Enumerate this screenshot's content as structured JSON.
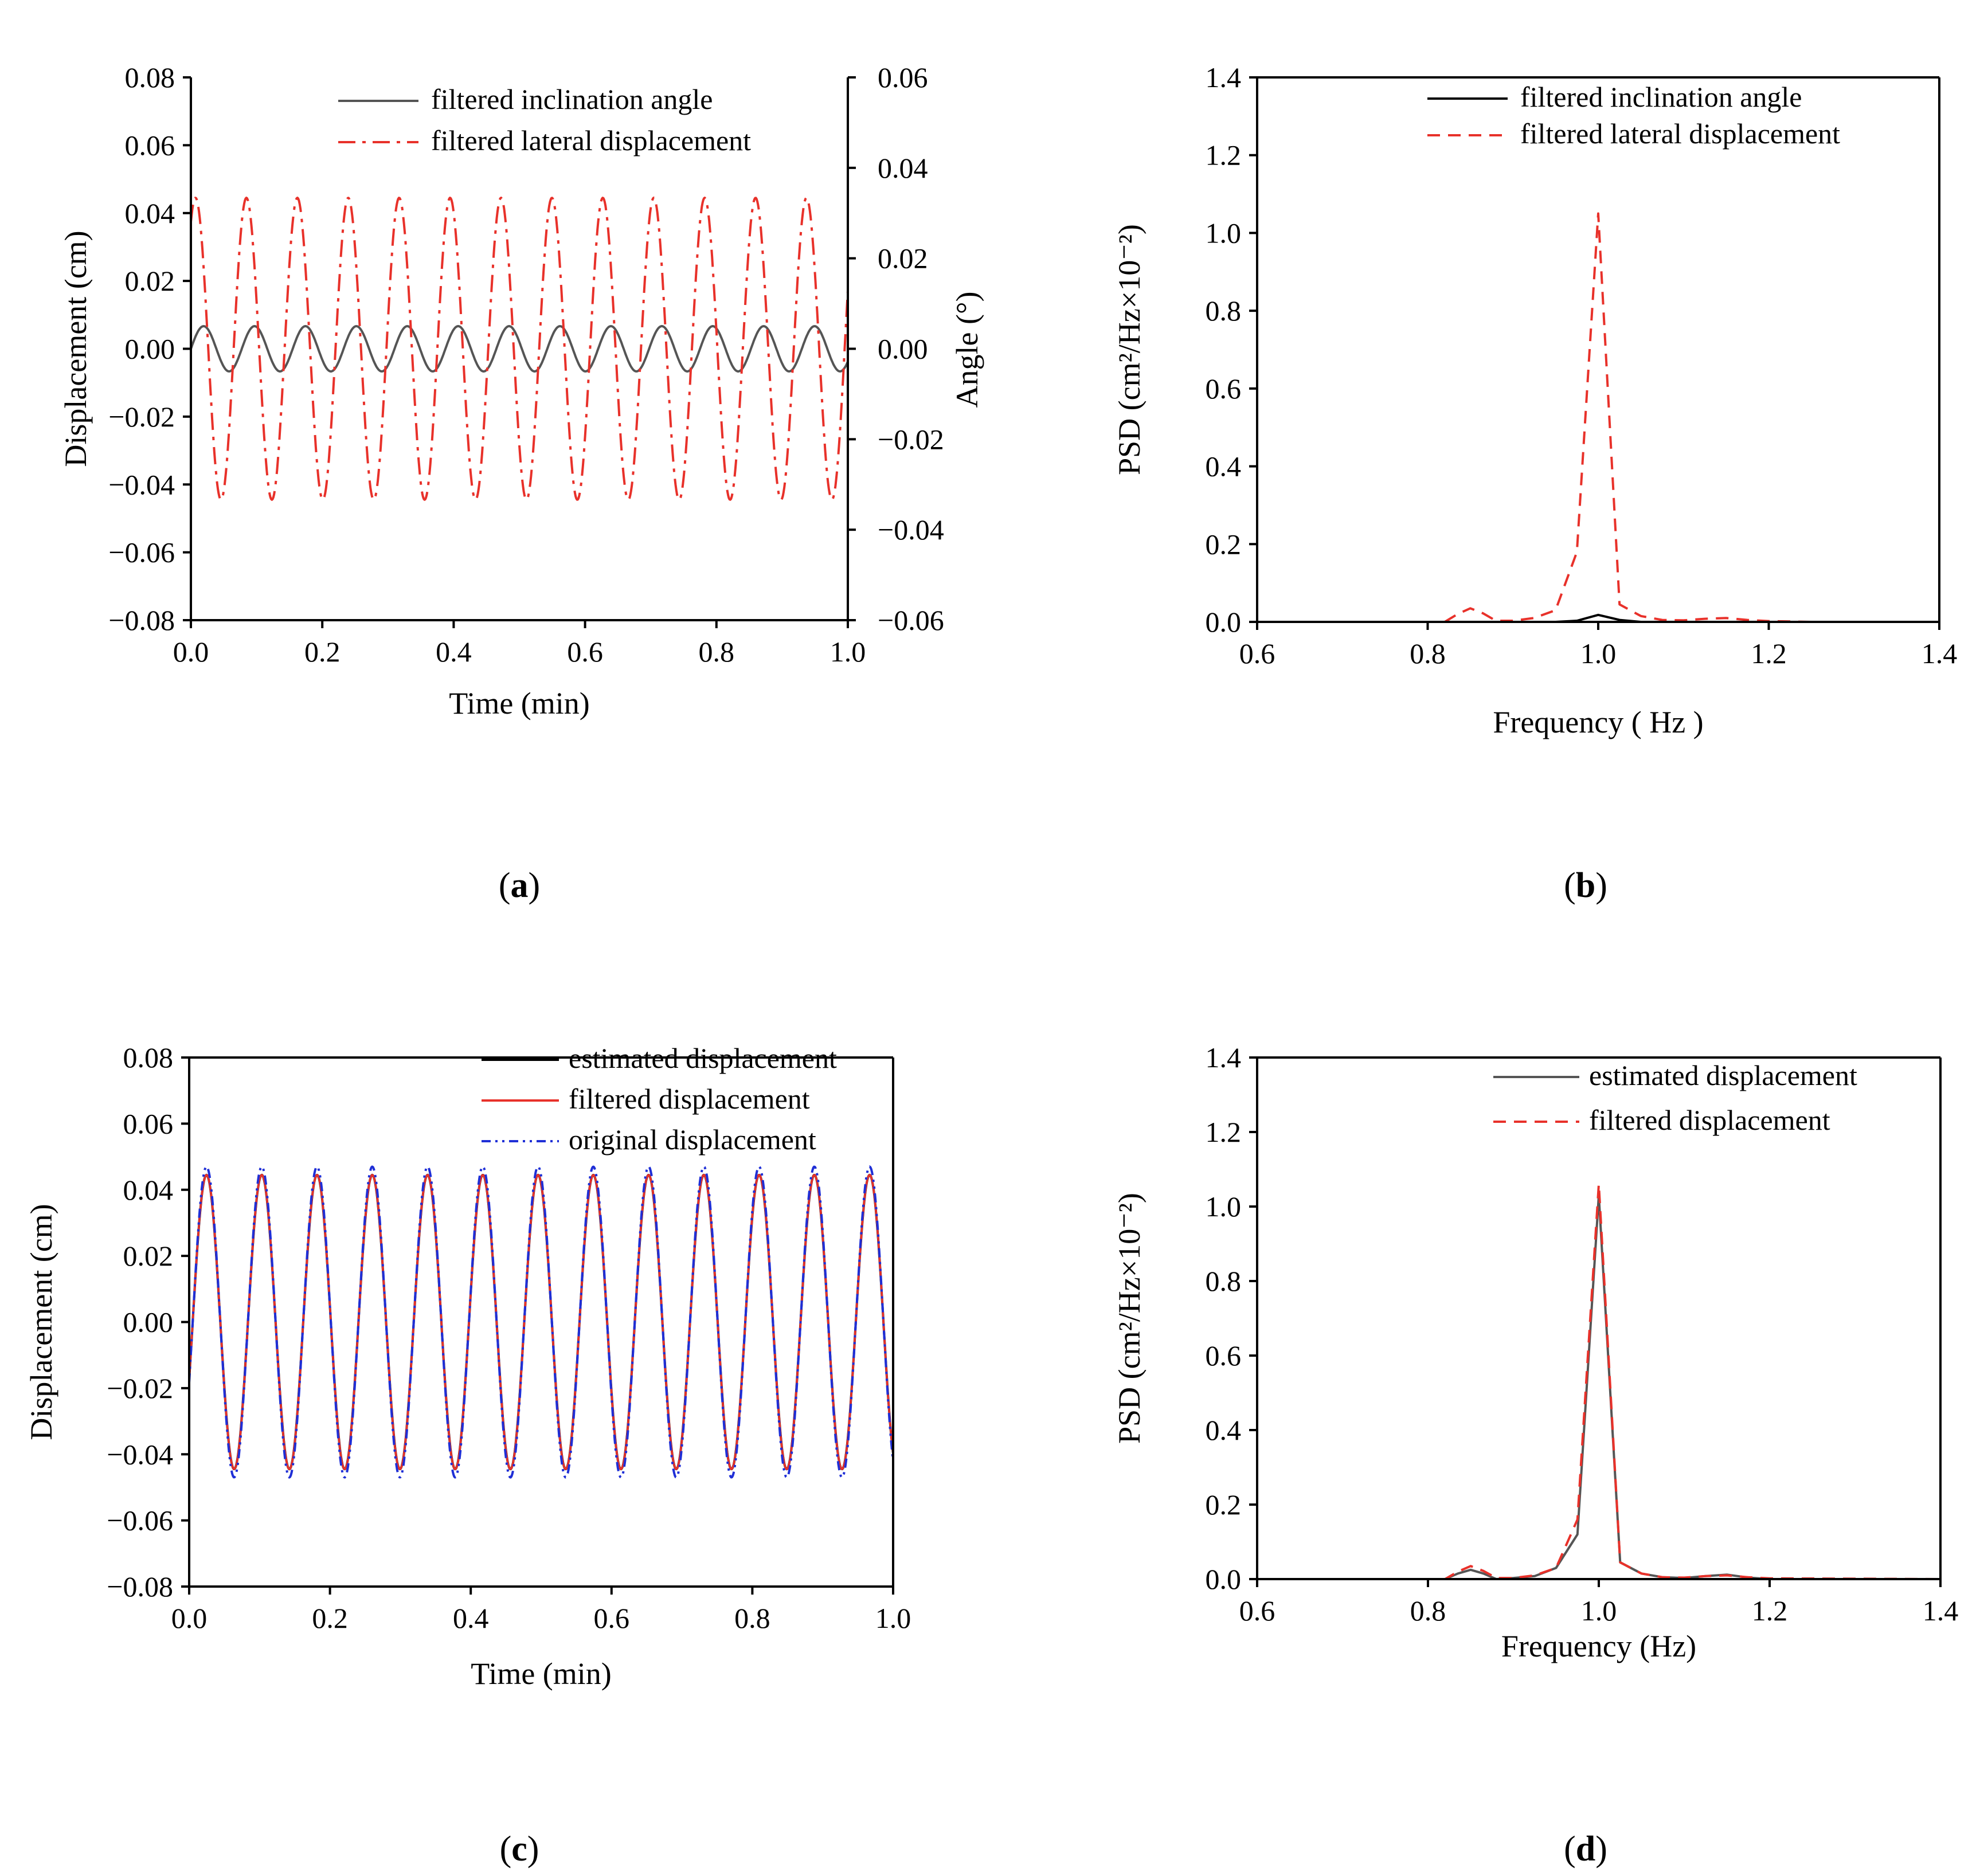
{
  "figure": {
    "captions": [
      {
        "letter": "a",
        "open": "(",
        "close": ")"
      },
      {
        "letter": "b",
        "open": "(",
        "close": ")"
      },
      {
        "letter": "c",
        "open": "(",
        "close": ")"
      },
      {
        "letter": "d",
        "open": "(",
        "close": ")"
      }
    ]
  },
  "colors": {
    "black": "#000000",
    "gray": "#555555",
    "red": "#e8312a",
    "blue": "#1f2fd6"
  },
  "chart_data": [
    {
      "id": "a",
      "type": "line",
      "title": "",
      "xlabel": "Time (min)",
      "ylabel": "Displacement (cm)",
      "y2label": "Angle (°)",
      "xlim": [
        0.0,
        1.0
      ],
      "ylim": [
        -0.08,
        0.08
      ],
      "y2lim": [
        -0.06,
        0.06
      ],
      "xticks": [
        "0.0",
        "0.2",
        "0.4",
        "0.6",
        "0.8",
        "1.0"
      ],
      "yticks": [
        "0.08",
        "0.06",
        "0.04",
        "0.02",
        "0.00",
        "−0.02",
        "−0.04",
        "−0.06",
        "−0.08"
      ],
      "y2ticks": [
        "0.06",
        "0.04",
        "0.02",
        "0.00",
        "−0.02",
        "−0.04",
        "−0.06"
      ],
      "legend": "top-right",
      "series": [
        {
          "name": "filtered inclination angle",
          "axis": "y2",
          "kind": "sine",
          "amplitude": 0.005,
          "period": 0.0775,
          "phase": 0.0,
          "color": "#555555",
          "dash": "solid"
        },
        {
          "name": "filtered lateral displacement",
          "axis": "y",
          "kind": "sine",
          "amplitude": 0.0445,
          "period": 0.0775,
          "phase": 1.0,
          "color": "#e8312a",
          "dash": "dashdot"
        }
      ]
    },
    {
      "id": "b",
      "type": "line",
      "title": "",
      "xlabel": "Frequency ( Hz )",
      "ylabel": "PSD (cm²/Hz×10⁻²)",
      "xlim": [
        0.6,
        1.4
      ],
      "ylim": [
        0.0,
        1.4
      ],
      "xticks": [
        "0.6",
        "0.8",
        "1.0",
        "1.2",
        "1.4"
      ],
      "yticks": [
        "1.4",
        "1.2",
        "1.0",
        "0.8",
        "0.6",
        "0.4",
        "0.2",
        "0.0"
      ],
      "legend": "top-right",
      "series": [
        {
          "name": "filtered inclination angle",
          "color": "#000000",
          "dash": "solid",
          "x": [
            0.6,
            0.95,
            0.975,
            1.0,
            1.025,
            1.05,
            1.25
          ],
          "y": [
            0.0,
            0.0,
            0.003,
            0.018,
            0.005,
            0.0,
            0.0
          ]
        },
        {
          "name": "filtered lateral displacement",
          "color": "#e8312a",
          "dash": "dashed",
          "x": [
            0.82,
            0.835,
            0.85,
            0.865,
            0.88,
            0.9,
            0.925,
            0.95,
            0.975,
            1.0,
            1.025,
            1.05,
            1.075,
            1.1,
            1.125,
            1.15,
            1.175,
            1.2,
            1.25
          ],
          "y": [
            0.0,
            0.02,
            0.035,
            0.022,
            0.003,
            0.003,
            0.01,
            0.03,
            0.18,
            1.05,
            0.045,
            0.015,
            0.005,
            0.004,
            0.008,
            0.01,
            0.005,
            0.002,
            0.0
          ]
        }
      ]
    },
    {
      "id": "c",
      "type": "line",
      "title": "",
      "xlabel": "Time (min)",
      "ylabel": "Displacement (cm)",
      "xlim": [
        0.0,
        1.0
      ],
      "ylim": [
        -0.08,
        0.08
      ],
      "xticks": [
        "0.0",
        "0.2",
        "0.4",
        "0.6",
        "0.8",
        "1.0"
      ],
      "yticks": [
        "0.08",
        "0.06",
        "0.04",
        "0.02",
        "0.00",
        "−0.02",
        "−0.04",
        "−0.06",
        "−0.08"
      ],
      "legend": "top-right",
      "series": [
        {
          "name": "estimated displacement",
          "kind": "sine",
          "amplitude": 0.0445,
          "period": 0.0785,
          "phase": -0.4,
          "color": "#000000",
          "dash": "solid"
        },
        {
          "name": "filtered displacement",
          "kind": "sine",
          "amplitude": 0.0445,
          "period": 0.0785,
          "phase": -0.4,
          "color": "#e8312a",
          "dash": "solid"
        },
        {
          "name": "original displacement",
          "kind": "sine",
          "amplitude": 0.047,
          "period": 0.0785,
          "phase": -0.4,
          "color": "#1f2fd6",
          "dash": "dashdotdot"
        }
      ]
    },
    {
      "id": "d",
      "type": "line",
      "title": "",
      "xlabel": "Frequency (Hz)",
      "ylabel": "PSD (cm²/Hz×10⁻²)",
      "xlim": [
        0.6,
        1.4
      ],
      "ylim": [
        0.0,
        1.4
      ],
      "xticks": [
        "0.6",
        "0.8",
        "1.0",
        "1.2",
        "1.4"
      ],
      "yticks": [
        "1.4",
        "1.2",
        "1.0",
        "0.8",
        "0.6",
        "0.4",
        "0.2",
        "0.0"
      ],
      "legend": "top-right",
      "series": [
        {
          "name": "estimated displacement",
          "color": "#555555",
          "dash": "solid",
          "x": [
            0.6,
            0.82,
            0.835,
            0.85,
            0.865,
            0.88,
            0.9,
            0.925,
            0.95,
            0.975,
            1.0,
            1.025,
            1.05,
            1.075,
            1.1,
            1.125,
            1.15,
            1.175,
            1.2,
            1.4
          ],
          "y": [
            0.0,
            0.0,
            0.015,
            0.025,
            0.015,
            0.0,
            0.003,
            0.008,
            0.03,
            0.12,
            1.03,
            0.045,
            0.015,
            0.005,
            0.003,
            0.008,
            0.012,
            0.004,
            0.0,
            0.0
          ]
        },
        {
          "name": "filtered displacement",
          "color": "#e8312a",
          "dash": "dashed",
          "x": [
            0.6,
            0.82,
            0.835,
            0.85,
            0.865,
            0.88,
            0.9,
            0.925,
            0.95,
            0.975,
            1.0,
            1.025,
            1.05,
            1.075,
            1.1,
            1.125,
            1.15,
            1.175,
            1.2,
            1.4
          ],
          "y": [
            0.0,
            0.0,
            0.02,
            0.035,
            0.022,
            0.003,
            0.003,
            0.01,
            0.03,
            0.16,
            1.06,
            0.045,
            0.015,
            0.005,
            0.004,
            0.008,
            0.01,
            0.005,
            0.002,
            0.0
          ]
        }
      ]
    }
  ]
}
